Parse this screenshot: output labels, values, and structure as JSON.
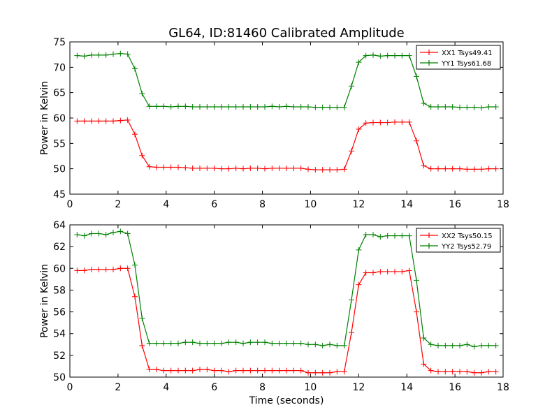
{
  "chart_data": [
    {
      "type": "line",
      "title": "GL64, ID:81460 Calibrated Amplitude",
      "xlabel": "",
      "ylabel": "Power in Kelvin",
      "xlim": [
        0,
        18
      ],
      "ylim": [
        45,
        75
      ],
      "xticks": [
        "0",
        "2",
        "4",
        "6",
        "8",
        "10",
        "12",
        "14",
        "16",
        "18"
      ],
      "yticks": [
        "45",
        "50",
        "55",
        "60",
        "65",
        "70",
        "75"
      ],
      "legend_position": "top-right",
      "grid": false,
      "x": [
        0.3,
        0.6,
        0.9,
        1.2,
        1.5,
        1.8,
        2.1,
        2.4,
        2.7,
        3.0,
        3.3,
        3.6,
        3.9,
        4.2,
        4.5,
        4.8,
        5.1,
        5.4,
        5.7,
        6.0,
        6.3,
        6.6,
        6.9,
        7.2,
        7.5,
        7.8,
        8.1,
        8.4,
        8.7,
        9.0,
        9.3,
        9.6,
        9.9,
        10.2,
        10.5,
        10.8,
        11.1,
        11.4,
        11.7,
        12.0,
        12.3,
        12.6,
        12.9,
        13.2,
        13.5,
        13.8,
        14.1,
        14.4,
        14.7,
        15.0,
        15.3,
        15.6,
        15.9,
        16.2,
        16.5,
        16.8,
        17.1,
        17.4,
        17.7
      ],
      "series": [
        {
          "name": "XX1 Tsys49.41",
          "color": "#ff0000",
          "values": [
            59.4,
            59.4,
            59.4,
            59.4,
            59.4,
            59.4,
            59.5,
            59.6,
            56.8,
            52.6,
            50.4,
            50.3,
            50.3,
            50.3,
            50.3,
            50.2,
            50.1,
            50.1,
            50.1,
            50.1,
            50.0,
            50.0,
            50.1,
            50.0,
            50.1,
            50.1,
            50.0,
            50.1,
            50.1,
            50.1,
            50.1,
            50.1,
            49.9,
            49.8,
            49.8,
            49.8,
            49.8,
            49.9,
            53.5,
            57.8,
            59.0,
            59.1,
            59.1,
            59.1,
            59.2,
            59.2,
            59.2,
            55.5,
            50.6,
            50.0,
            50.0,
            50.0,
            50.0,
            50.0,
            49.9,
            49.9,
            49.9,
            50.0,
            50.0
          ]
        },
        {
          "name": "YY1 Tsys61.68",
          "color": "#008000",
          "values": [
            72.3,
            72.2,
            72.4,
            72.4,
            72.4,
            72.6,
            72.7,
            72.6,
            69.7,
            64.8,
            62.3,
            62.3,
            62.3,
            62.2,
            62.3,
            62.3,
            62.2,
            62.2,
            62.2,
            62.2,
            62.2,
            62.2,
            62.2,
            62.2,
            62.2,
            62.2,
            62.2,
            62.3,
            62.2,
            62.3,
            62.2,
            62.2,
            62.2,
            62.1,
            62.1,
            62.1,
            62.1,
            62.1,
            66.3,
            71.0,
            72.3,
            72.4,
            72.2,
            72.3,
            72.3,
            72.3,
            72.3,
            68.2,
            62.9,
            62.2,
            62.2,
            62.2,
            62.2,
            62.1,
            62.1,
            62.1,
            62.0,
            62.2,
            62.2
          ]
        }
      ]
    },
    {
      "type": "line",
      "title": "",
      "xlabel": "Time (seconds)",
      "ylabel": "Power in Kelvin",
      "xlim": [
        0,
        18
      ],
      "ylim": [
        50,
        64
      ],
      "xticks": [
        "0",
        "2",
        "4",
        "6",
        "8",
        "10",
        "12",
        "14",
        "16",
        "18"
      ],
      "yticks": [
        "50",
        "52",
        "54",
        "56",
        "58",
        "60",
        "62",
        "64"
      ],
      "legend_position": "top-right",
      "grid": false,
      "x": [
        0.3,
        0.6,
        0.9,
        1.2,
        1.5,
        1.8,
        2.1,
        2.4,
        2.7,
        3.0,
        3.3,
        3.6,
        3.9,
        4.2,
        4.5,
        4.8,
        5.1,
        5.4,
        5.7,
        6.0,
        6.3,
        6.6,
        6.9,
        7.2,
        7.5,
        7.8,
        8.1,
        8.4,
        8.7,
        9.0,
        9.3,
        9.6,
        9.9,
        10.2,
        10.5,
        10.8,
        11.1,
        11.4,
        11.7,
        12.0,
        12.3,
        12.6,
        12.9,
        13.2,
        13.5,
        13.8,
        14.1,
        14.4,
        14.7,
        15.0,
        15.3,
        15.6,
        15.9,
        16.2,
        16.5,
        16.8,
        17.1,
        17.4,
        17.7
      ],
      "series": [
        {
          "name": "XX2 Tsys50.15",
          "color": "#ff0000",
          "values": [
            59.8,
            59.8,
            59.9,
            59.9,
            59.9,
            59.9,
            60.0,
            60.0,
            57.4,
            52.9,
            50.7,
            50.7,
            50.6,
            50.6,
            50.6,
            50.6,
            50.6,
            50.7,
            50.7,
            50.6,
            50.6,
            50.5,
            50.6,
            50.6,
            50.6,
            50.6,
            50.6,
            50.6,
            50.6,
            50.6,
            50.6,
            50.6,
            50.4,
            50.4,
            50.4,
            50.4,
            50.5,
            50.5,
            54.1,
            58.5,
            59.6,
            59.6,
            59.7,
            59.7,
            59.7,
            59.7,
            59.8,
            56.0,
            51.2,
            50.6,
            50.5,
            50.5,
            50.5,
            50.5,
            50.5,
            50.4,
            50.4,
            50.5,
            50.5
          ]
        },
        {
          "name": "YY2 Tsys52.79",
          "color": "#008000",
          "values": [
            63.1,
            63.0,
            63.2,
            63.2,
            63.1,
            63.3,
            63.4,
            63.2,
            60.3,
            55.4,
            53.1,
            53.1,
            53.1,
            53.1,
            53.1,
            53.2,
            53.2,
            53.1,
            53.1,
            53.1,
            53.1,
            53.2,
            53.2,
            53.1,
            53.2,
            53.2,
            53.2,
            53.1,
            53.1,
            53.1,
            53.1,
            53.1,
            53.0,
            53.0,
            52.9,
            53.0,
            52.9,
            52.9,
            57.1,
            61.7,
            63.1,
            63.1,
            62.9,
            63.0,
            63.0,
            63.0,
            63.0,
            58.9,
            53.6,
            53.0,
            52.9,
            52.9,
            52.9,
            52.9,
            53.0,
            52.8,
            52.9,
            52.9,
            52.9
          ]
        }
      ]
    }
  ]
}
